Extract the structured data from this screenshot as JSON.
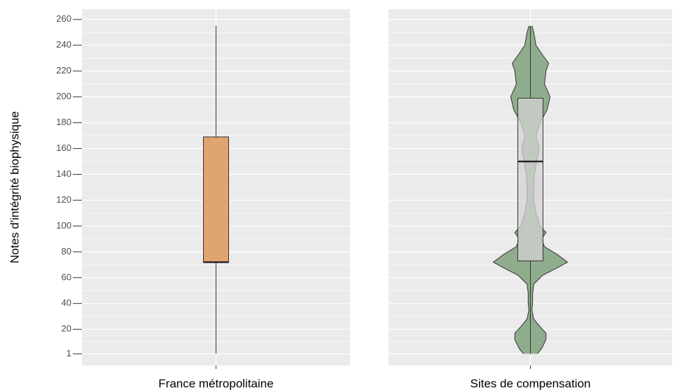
{
  "chart_data": {
    "type": "boxplot",
    "ylabel": "Notes d'intégrité biophysique",
    "categories": [
      "France métropolitaine",
      "Sites de compensation"
    ],
    "ylim": [
      -8,
      268
    ],
    "yticks": [
      1,
      20,
      40,
      60,
      80,
      100,
      120,
      140,
      160,
      180,
      200,
      220,
      240,
      260
    ],
    "grid": true,
    "boxes": [
      {
        "min": 1,
        "q1": 72,
        "median": 72,
        "q3": 169,
        "max": 255,
        "color": "#e0a470"
      },
      {
        "min": 1,
        "q1": 73,
        "median": 150,
        "q3": 199,
        "max": 255,
        "color": "#d3d3d3",
        "violin": {
          "color": "#8fac8c",
          "y": [
            1,
            5,
            12,
            17,
            22,
            28,
            35,
            40,
            48,
            55,
            62,
            68,
            72,
            78,
            84,
            90,
            95,
            100,
            110,
            120,
            130,
            140,
            150,
            160,
            170,
            180,
            190,
            200,
            210,
            220,
            226,
            232,
            240,
            250,
            255
          ],
          "density": [
            0.19,
            0.3,
            0.42,
            0.42,
            0.26,
            0.09,
            0.04,
            0.06,
            0.06,
            0.09,
            0.34,
            0.75,
            1,
            0.72,
            0.38,
            0.3,
            0.42,
            0.26,
            0.15,
            0.09,
            0.09,
            0.11,
            0.17,
            0.23,
            0.15,
            0.26,
            0.45,
            0.53,
            0.38,
            0.42,
            0.49,
            0.34,
            0.15,
            0.09,
            0.04
          ]
        }
      }
    ]
  }
}
